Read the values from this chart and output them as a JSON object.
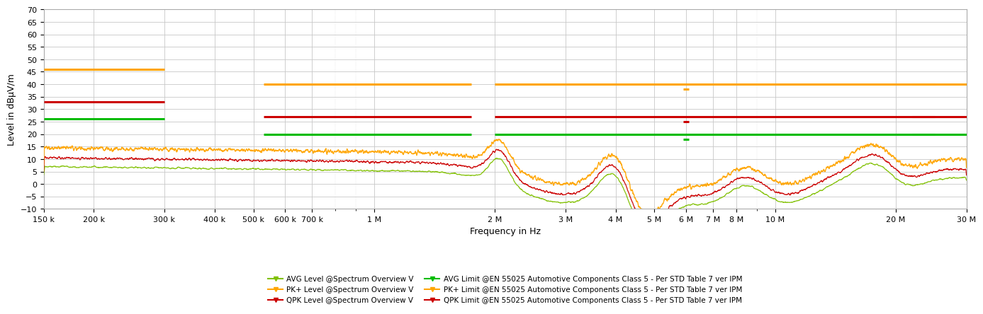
{
  "ylabel": "Level in dBµV/m",
  "xlabel": "Frequency in Hz",
  "ylim": [
    -10,
    70
  ],
  "yticks": [
    -10,
    -5,
    0,
    5,
    10,
    15,
    20,
    25,
    30,
    35,
    40,
    45,
    50,
    55,
    60,
    65,
    70
  ],
  "xmin_hz": 150000,
  "xmax_hz": 30000000,
  "bg_color": "#ffffff",
  "grid_color": "#c8c8c8",
  "color_avg": "#80c000",
  "color_pk": "#ffa500",
  "color_qpk": "#cc0000",
  "color_avg_limit": "#00bb00",
  "color_pk_limit": "#ffa500",
  "color_qpk_limit": "#cc0000",
  "legend_entries": [
    {
      "label": "AVG Level @Spectrum Overview V",
      "color": "#80c000"
    },
    {
      "label": "PK+ Level @Spectrum Overview V",
      "color": "#ffa500"
    },
    {
      "label": "QPK Level @Spectrum Overview V",
      "color": "#cc0000"
    },
    {
      "label": "AVG Limit @EN 55025 Automotive Components Class 5 - Per STD Table 7 ver IPM",
      "color": "#00bb00"
    },
    {
      "label": "PK+ Limit @EN 55025 Automotive Components Class 5 - Per STD Table 7 ver IPM",
      "color": "#ffa500"
    },
    {
      "label": "QPK Limit @EN 55025 Automotive Components Class 5 - Per STD Table 7 ver IPM",
      "color": "#cc0000"
    }
  ],
  "limit_segments": {
    "pk_limit": [
      {
        "x1": 150000,
        "x2": 300000,
        "y": 46
      },
      {
        "x1": 530000,
        "x2": 1750000,
        "y": 40
      },
      {
        "x1": 5900000,
        "x2": 6100000,
        "y": 38
      },
      {
        "x1": 22000000,
        "x2": 25000000,
        "y": 40
      }
    ],
    "qpk_limit": [
      {
        "x1": 150000,
        "x2": 300000,
        "y": 33
      },
      {
        "x1": 530000,
        "x2": 1750000,
        "y": 27
      },
      {
        "x1": 5900000,
        "x2": 6100000,
        "y": 25
      },
      {
        "x1": 22000000,
        "x2": 25000000,
        "y": 27
      }
    ],
    "avg_limit": [
      {
        "x1": 150000,
        "x2": 300000,
        "y": 26
      },
      {
        "x1": 530000,
        "x2": 1750000,
        "y": 20
      },
      {
        "x1": 5900000,
        "x2": 6100000,
        "y": 18
      },
      {
        "x1": 22000000,
        "x2": 25000000,
        "y": 20
      }
    ],
    "pk_limit_high": [
      {
        "x1": 2000000,
        "x2": 30000000,
        "y": 40
      }
    ],
    "qpk_limit_high": [
      {
        "x1": 2000000,
        "x2": 30000000,
        "y": 27
      }
    ],
    "avg_limit_high": [
      {
        "x1": 2000000,
        "x2": 30000000,
        "y": 20
      }
    ]
  },
  "xtick_vals": [
    150000,
    200000,
    300000,
    400000,
    500000,
    600000,
    700000,
    1000000,
    2000000,
    3000000,
    4000000,
    5000000,
    6000000,
    7000000,
    8000000,
    10000000,
    20000000,
    30000000
  ],
  "xtick_labels": [
    "150 k",
    "200 k",
    "300 k",
    "400 k",
    "500 k",
    "600 k",
    "700 k",
    "1 M",
    "2 M",
    "3 M",
    "4 M",
    "5 M",
    "6 M",
    "7 M",
    "8 M",
    "10 M",
    "20 M",
    "30 M"
  ]
}
